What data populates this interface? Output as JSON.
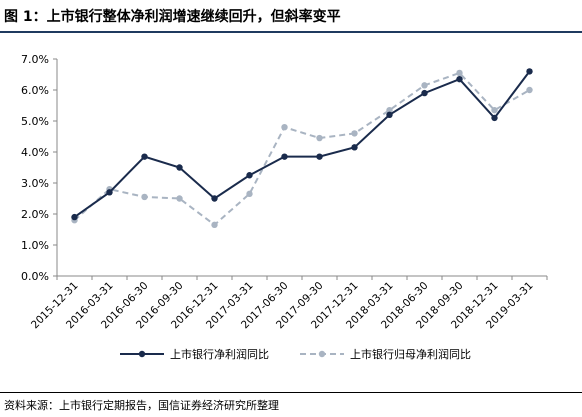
{
  "figure": {
    "title": "图 1：上市银行整体净利润增速继续回升，但斜率变平",
    "source": "资料来源：上市银行定期报告，国信证券经济研究所整理"
  },
  "chart_data": {
    "type": "line",
    "categories": [
      "2015-12-31",
      "2016-03-31",
      "2016-06-30",
      "2016-09-30",
      "2016-12-31",
      "2017-03-31",
      "2017-06-30",
      "2017-09-30",
      "2017-12-31",
      "2018-03-31",
      "2018-06-30",
      "2018-09-30",
      "2018-12-31",
      "2019-03-31"
    ],
    "series": [
      {
        "name": "上市银行净利润同比",
        "values": [
          1.9,
          2.7,
          3.85,
          3.5,
          2.5,
          3.25,
          3.85,
          3.85,
          4.15,
          5.2,
          5.9,
          6.35,
          5.1,
          6.6
        ],
        "color": "#1a2b4c",
        "style": "solid",
        "marker": "circle"
      },
      {
        "name": "上市银行归母净利润同比",
        "values": [
          1.8,
          2.8,
          2.55,
          2.5,
          1.65,
          2.65,
          4.8,
          4.45,
          4.6,
          5.35,
          6.15,
          6.55,
          5.35,
          6.0
        ],
        "color": "#a9b4c2",
        "style": "dashed",
        "marker": "circle"
      }
    ],
    "yticks": [
      "0.0%",
      "1.0%",
      "2.0%",
      "3.0%",
      "4.0%",
      "5.0%",
      "6.0%",
      "7.0%"
    ],
    "ylim": [
      0,
      7
    ],
    "grid": false,
    "legend_position": "bottom"
  }
}
